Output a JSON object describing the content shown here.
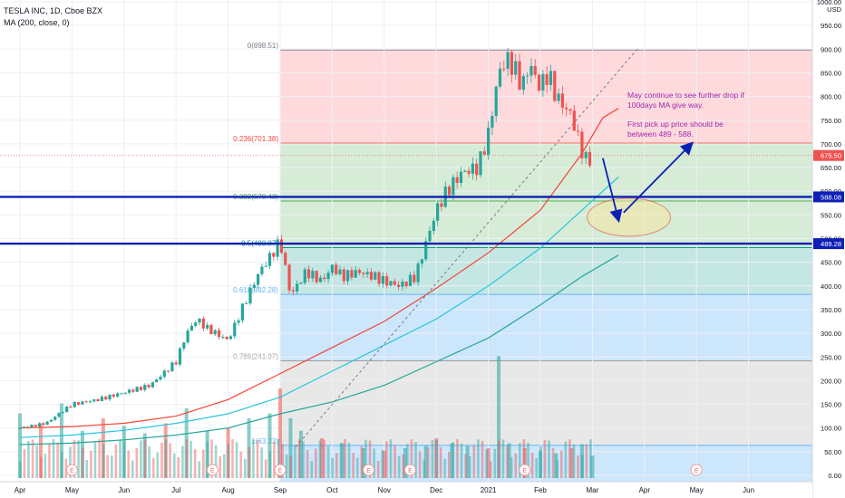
{
  "legend": {
    "title": "TESLA INC, 1D, Cboe BZX",
    "ma_label": "MA (200, close, 0)"
  },
  "annotation": {
    "line1": "May continue to see further drop if 100days MA give way.",
    "line2": "First pick up price should be between 489 - 588."
  },
  "chart_data": {
    "type": "candlestick",
    "symbol": "TESLA INC",
    "interval": "1D",
    "exchange": "Cboe BZX",
    "currency": "USD",
    "price_axis": {
      "ticks": [
        0,
        50,
        100,
        150,
        200,
        250,
        300,
        350,
        400,
        450,
        500,
        550,
        600,
        650,
        700,
        750,
        800,
        850,
        900,
        950,
        1000
      ],
      "tick_labels": [
        "0.00",
        "50.00",
        "100.00",
        "150.00",
        "200.00",
        "250.00",
        "300.00",
        "350.00",
        "400.00",
        "450.00",
        "500.00",
        "550.00",
        "600.00",
        "650.00",
        "700.00",
        "750.00",
        "800.00",
        "850.00",
        "900.00",
        "950.00",
        "1000.00"
      ],
      "range": [
        -5,
        1010
      ],
      "grid": true
    },
    "time_axis": {
      "labels": [
        "Apr",
        "May",
        "Jun",
        "Jul",
        "Aug",
        "Sep",
        "Oct",
        "Nov",
        "Dec",
        "2021",
        "Feb",
        "Mar",
        "Apr",
        "May",
        "Jun"
      ],
      "months": [
        0,
        1,
        2,
        3,
        4,
        5,
        6,
        7,
        8,
        9,
        10,
        11,
        12,
        13,
        14
      ]
    },
    "price_badges": [
      {
        "value": 675.5,
        "label": "675.50",
        "color": "#ef5350"
      },
      {
        "value": 588.08,
        "label": "588.08",
        "color": "#0d1fb5"
      },
      {
        "value": 489.28,
        "label": "489.28",
        "color": "#0d1fb5"
      }
    ],
    "fibonacci": {
      "start_month": 5.0,
      "end_month": 14.9,
      "levels": [
        {
          "ratio": "0",
          "price": 898.51,
          "label": "0(898.51)",
          "fill": "#ffcdd2",
          "line": "#787b86"
        },
        {
          "ratio": "0.236",
          "price": 701.38,
          "label": "0.236(701.38)",
          "fill": "#c8e6c9",
          "line": "#f44336"
        },
        {
          "ratio": "0.382",
          "price": 579.43,
          "label": "0.382(579.43)",
          "fill": "#c8e6c9",
          "line": "#4caf50"
        },
        {
          "ratio": "0.5",
          "price": 480.87,
          "label": "0.5(480.87)",
          "fill": "#b2dfdb",
          "line": "#009688"
        },
        {
          "ratio": "0.618",
          "price": 382.28,
          "label": "0.618(382.28)",
          "fill": "#bbdefb",
          "line": "#64b5f6"
        },
        {
          "ratio": "0.786",
          "price": 241.97,
          "label": "0.786(241.97)",
          "fill": "#e0e0e0",
          "line": "#9e9e9e"
        },
        {
          "ratio": "1",
          "price": 63.23,
          "label": "1(63.23)",
          "fill": "#bbdefb",
          "line": "#64b5f6"
        }
      ]
    },
    "horizontal_lines": [
      {
        "price": 588.08,
        "color": "#0d1fb5"
      },
      {
        "price": 489.28,
        "color": "#0d1fb5"
      }
    ],
    "moving_averages": [
      {
        "name": "MA (200, close, 0)",
        "color": "#f44336",
        "points": [
          [
            0,
            100
          ],
          [
            1,
            103
          ],
          [
            2,
            110
          ],
          [
            3,
            125
          ],
          [
            4,
            160
          ],
          [
            5,
            215
          ],
          [
            6,
            270
          ],
          [
            7,
            325
          ],
          [
            8,
            395
          ],
          [
            9,
            470
          ],
          [
            10,
            560
          ],
          [
            10.8,
            680
          ],
          [
            11.2,
            755
          ],
          [
            11.5,
            775
          ]
        ]
      },
      {
        "color": "#26c6da",
        "points": [
          [
            0,
            80
          ],
          [
            1,
            85
          ],
          [
            2,
            95
          ],
          [
            3,
            110
          ],
          [
            4,
            130
          ],
          [
            5,
            165
          ],
          [
            6,
            220
          ],
          [
            7,
            275
          ],
          [
            8,
            330
          ],
          [
            9,
            400
          ],
          [
            10,
            480
          ],
          [
            10.8,
            560
          ],
          [
            11.5,
            630
          ]
        ]
      },
      {
        "color": "#26a69a",
        "points": [
          [
            0,
            65
          ],
          [
            1,
            68
          ],
          [
            2,
            75
          ],
          [
            3,
            85
          ],
          [
            4,
            100
          ],
          [
            5,
            130
          ],
          [
            6,
            155
          ],
          [
            7,
            190
          ],
          [
            8,
            240
          ],
          [
            9,
            290
          ],
          [
            10,
            360
          ],
          [
            10.8,
            420
          ],
          [
            11.5,
            465
          ]
        ]
      }
    ],
    "trendline_dashed": {
      "from": [
        5.3,
        60
      ],
      "to": [
        11.9,
        905
      ]
    },
    "price_points": [
      [
        0,
        100
      ],
      [
        0.5,
        110
      ],
      [
        1,
        150
      ],
      [
        1.5,
        160
      ],
      [
        2,
        175
      ],
      [
        2.5,
        190
      ],
      [
        3,
        240
      ],
      [
        3.2,
        300
      ],
      [
        3.4,
        330
      ],
      [
        3.6,
        310
      ],
      [
        4,
        285
      ],
      [
        4.3,
        360
      ],
      [
        4.6,
        430
      ],
      [
        4.8,
        460
      ],
      [
        5,
        495
      ],
      [
        5.2,
        380
      ],
      [
        5.5,
        430
      ],
      [
        5.8,
        410
      ],
      [
        6,
        440
      ],
      [
        6.2,
        420
      ],
      [
        6.5,
        430
      ],
      [
        6.8,
        420
      ],
      [
        7,
        410
      ],
      [
        7.3,
        400
      ],
      [
        7.6,
        420
      ],
      [
        8,
        560
      ],
      [
        8.2,
        600
      ],
      [
        8.5,
        640
      ],
      [
        8.8,
        650
      ],
      [
        9,
        720
      ],
      [
        9.2,
        850
      ],
      [
        9.35,
        880
      ],
      [
        9.5,
        860
      ],
      [
        9.65,
        820
      ],
      [
        9.8,
        870
      ],
      [
        9.9,
        840
      ],
      [
        10,
        820
      ],
      [
        10.15,
        850
      ],
      [
        10.3,
        800
      ],
      [
        10.45,
        780
      ],
      [
        10.6,
        760
      ],
      [
        10.75,
        700
      ],
      [
        10.9,
        660
      ],
      [
        11,
        675.5
      ]
    ],
    "volume_bars_scale_note": "volume histogram in lower pane",
    "volume": [
      [
        0,
        130
      ],
      [
        0.4,
        110
      ],
      [
        0.8,
        150
      ],
      [
        1.2,
        95
      ],
      [
        1.6,
        120
      ],
      [
        2,
        105
      ],
      [
        2.4,
        90
      ],
      [
        2.8,
        110
      ],
      [
        3.2,
        140
      ],
      [
        3.6,
        95
      ],
      [
        4,
        100
      ],
      [
        4.4,
        120
      ],
      [
        4.8,
        130
      ],
      [
        5,
        180
      ],
      [
        5.2,
        120
      ],
      [
        5.4,
        95
      ],
      [
        5.8,
        80
      ],
      [
        6.2,
        70
      ],
      [
        6.6,
        60
      ],
      [
        7,
        55
      ],
      [
        7.4,
        60
      ],
      [
        7.8,
        65
      ],
      [
        8,
        80
      ],
      [
        8.3,
        70
      ],
      [
        8.6,
        65
      ],
      [
        9,
        60
      ],
      [
        9.2,
        245
      ],
      [
        9.4,
        70
      ],
      [
        9.7,
        60
      ],
      [
        10,
        55
      ],
      [
        10.3,
        50
      ],
      [
        10.6,
        60
      ],
      [
        10.8,
        68
      ],
      [
        11,
        45
      ]
    ],
    "earnings_markers": [
      {
        "month": 1.0,
        "label": "E"
      },
      {
        "month": 3.7,
        "label": "E"
      },
      {
        "month": 5.0,
        "label": "E"
      },
      {
        "month": 6.7,
        "label": "E"
      },
      {
        "month": 7.5,
        "label": "E"
      },
      {
        "month": 9.7,
        "label": "E"
      },
      {
        "month": 13.0,
        "label": "E"
      }
    ],
    "projection_arrows": [
      {
        "from": [
          11.2,
          670
        ],
        "to": [
          11.5,
          540
        ]
      },
      {
        "from": [
          11.6,
          555
        ],
        "to": [
          12.9,
          700
        ]
      }
    ],
    "target_ellipse": {
      "center": [
        11.7,
        545
      ],
      "rx_months": 0.8,
      "ry_price": 40
    }
  }
}
